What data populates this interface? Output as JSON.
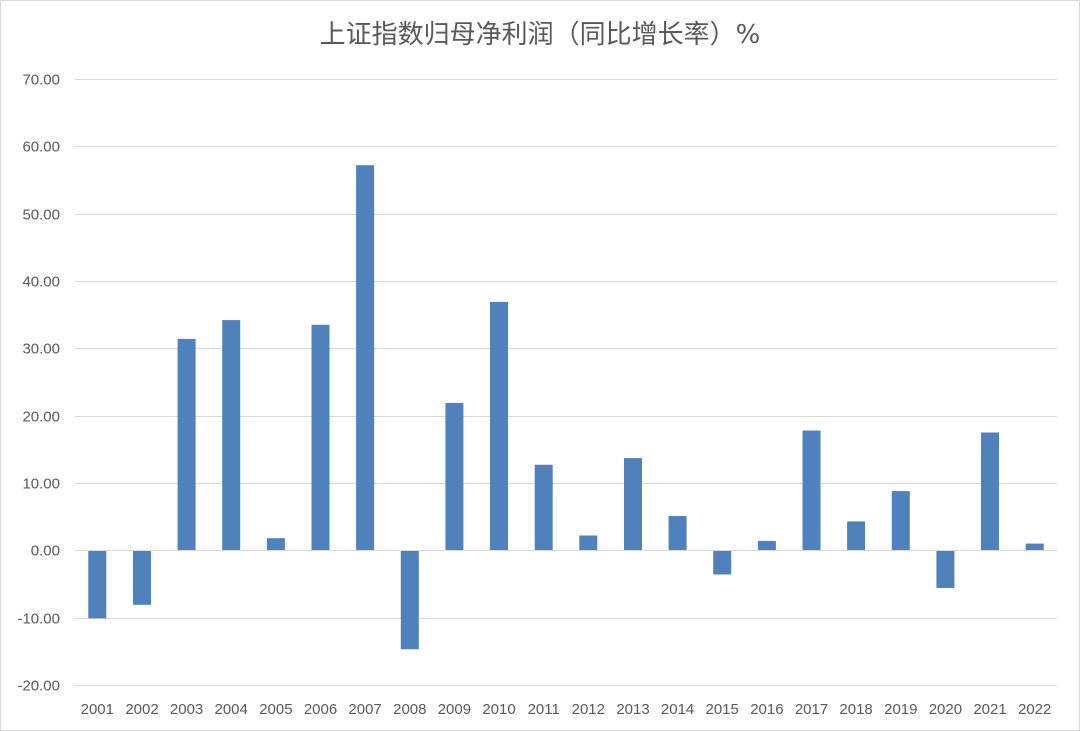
{
  "chart_data": {
    "type": "bar",
    "title": "上证指数归母净利润（同比增长率）%",
    "xlabel": "",
    "ylabel": "",
    "categories": [
      "2001",
      "2002",
      "2003",
      "2004",
      "2005",
      "2006",
      "2007",
      "2008",
      "2009",
      "2010",
      "2011",
      "2012",
      "2013",
      "2014",
      "2015",
      "2016",
      "2017",
      "2018",
      "2019",
      "2020",
      "2021",
      "2022"
    ],
    "values": [
      -10.1,
      -8.1,
      31.4,
      34.2,
      1.8,
      33.5,
      57.2,
      -14.7,
      21.9,
      36.9,
      12.7,
      2.2,
      13.7,
      5.1,
      -3.6,
      1.4,
      17.8,
      4.3,
      8.8,
      -5.6,
      17.5,
      1.0
    ],
    "ylim": [
      -20,
      70
    ],
    "yticks": [
      "-20.00",
      "-10.00",
      "0.00",
      "10.00",
      "20.00",
      "30.00",
      "40.00",
      "50.00",
      "60.00",
      "70.00"
    ],
    "grid": true,
    "legend": "none",
    "colors": {
      "bar": "#4f81bd",
      "grid": "#d9d9d9",
      "axis": "#d9d9d9",
      "text": "#595959"
    }
  }
}
